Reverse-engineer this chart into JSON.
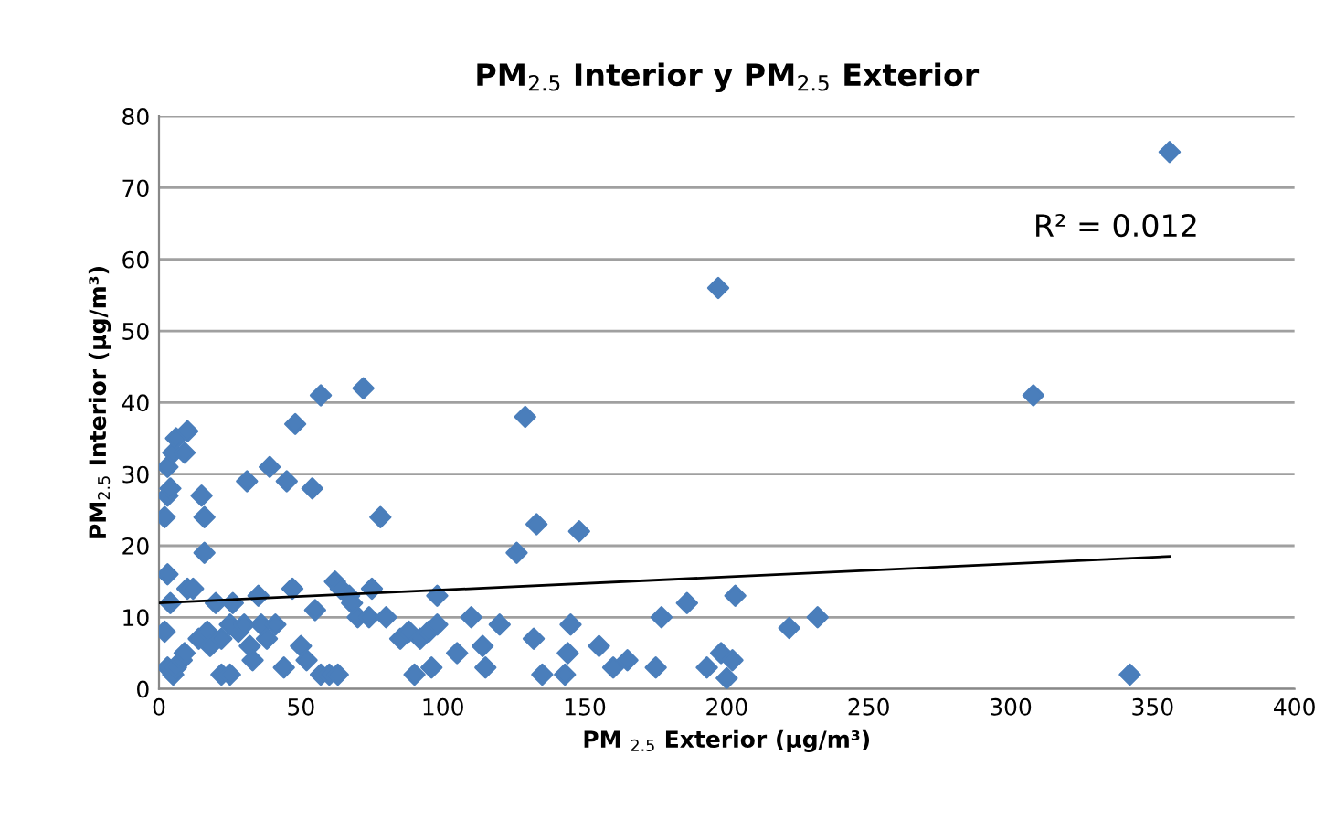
{
  "chart_data": {
    "type": "scatter",
    "title": "PM$_{2.5}$ Interior y PM$_{2.5}$ Exterior",
    "xlabel": "PM $_{2.5}$ Exterior (µg/m³)",
    "ylabel": "PM$_{2.5}$ Interior (µg/m³)",
    "xlim": [
      0,
      400
    ],
    "xticks": [
      0,
      50,
      100,
      150,
      200,
      250,
      300,
      350,
      400
    ],
    "ylim": [
      0,
      80
    ],
    "yticks": [
      0,
      10,
      20,
      30,
      40,
      50,
      60,
      70,
      80
    ],
    "grid": "y",
    "legend": false,
    "marker": "diamond",
    "annotations": [
      "R² = 0.012"
    ],
    "series": [
      {
        "color": "#4a7ebb",
        "x": [
          2,
          3,
          4,
          3,
          5,
          6,
          9,
          10,
          3,
          4,
          2,
          3,
          5,
          6,
          8,
          9,
          10,
          12,
          14,
          15,
          16,
          16,
          17,
          18,
          20,
          22,
          22,
          25,
          25,
          26,
          28,
          30,
          31,
          32,
          33,
          35,
          36,
          38,
          39,
          41,
          44,
          45,
          47,
          48,
          50,
          52,
          54,
          55,
          57,
          57,
          60,
          62,
          63,
          64,
          67,
          68,
          70,
          72,
          74,
          75,
          78,
          80,
          85,
          88,
          90,
          92,
          95,
          96,
          98,
          98,
          105,
          110,
          114,
          115,
          120,
          126,
          129,
          132,
          133,
          135,
          143,
          144,
          145,
          148,
          155,
          160,
          165,
          175,
          177,
          186,
          193,
          197,
          198,
          200,
          202,
          203,
          222,
          232,
          308,
          342,
          356
        ],
        "values": [
          24,
          27,
          28,
          31,
          33,
          35,
          33,
          36,
          16,
          12,
          8,
          3,
          2,
          3,
          4,
          5,
          14,
          14,
          7,
          27,
          24,
          19,
          8,
          6,
          12,
          7,
          2,
          2,
          9,
          12,
          8,
          9,
          29,
          6,
          4,
          13,
          9,
          7,
          31,
          9,
          3,
          29,
          14,
          37,
          6,
          4,
          28,
          11,
          41,
          2,
          2,
          15,
          2,
          14,
          13,
          12,
          10,
          42,
          10,
          14,
          24,
          10,
          7,
          8,
          2,
          7,
          8,
          3,
          9,
          13,
          5,
          10,
          6,
          3,
          9,
          19,
          38,
          7,
          23,
          2,
          2,
          5,
          9,
          22,
          6,
          3,
          4,
          3,
          10,
          12,
          3,
          56,
          5,
          1.5,
          4,
          13,
          8.5,
          10,
          41,
          2,
          75
        ]
      },
      {
        "type": "line",
        "color": "#000000",
        "marker": "none",
        "x": [
          0,
          356
        ],
        "values": [
          12.0,
          18.5
        ]
      }
    ]
  }
}
